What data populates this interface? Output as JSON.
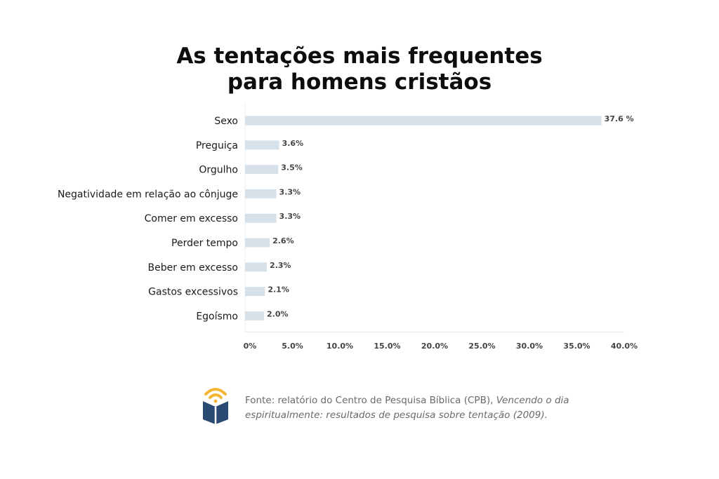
{
  "title": {
    "line1": "As tentações mais frequentes",
    "line2": "para homens cristãos"
  },
  "chart_data": {
    "type": "bar",
    "orientation": "horizontal",
    "title": "As tentações mais frequentes para homens cristãos",
    "categories": [
      "Sexo",
      "Preguiça",
      "Orgulho",
      "Negatividade em relação ao cônjuge",
      "Comer em excesso",
      "Perder tempo",
      "Beber em excesso",
      "Gastos excessivos",
      "Egoísmo"
    ],
    "values": [
      37.6,
      3.6,
      3.5,
      3.3,
      3.3,
      2.6,
      2.3,
      2.1,
      2.0
    ],
    "value_labels": [
      "37.6 %",
      "3.6%",
      "3.5%",
      "3.3%",
      "3.3%",
      "2.6%",
      "2.3%",
      "2.1%",
      "2.0%"
    ],
    "xlim": [
      0,
      40
    ],
    "x_ticks": [
      "0%",
      "5.0%",
      "10.0%",
      "15.0%",
      "20.0%",
      "25.0%",
      "30.0%",
      "35.0%",
      "40.0%"
    ],
    "grid": false,
    "bar_color": "#d7e1ea"
  },
  "source": {
    "prefix": "Fonte: relatório do Centro de Pesquisa Bíblica (CPB),",
    "italic": "Vencendo o dia espiritualmente: resultados de pesquisa sobre tentação (2009)."
  },
  "logo": {
    "icon": "book-signal-icon",
    "colors": {
      "book": "#2b4a73",
      "page": "#ffffff",
      "waves": "#f2b632"
    }
  }
}
